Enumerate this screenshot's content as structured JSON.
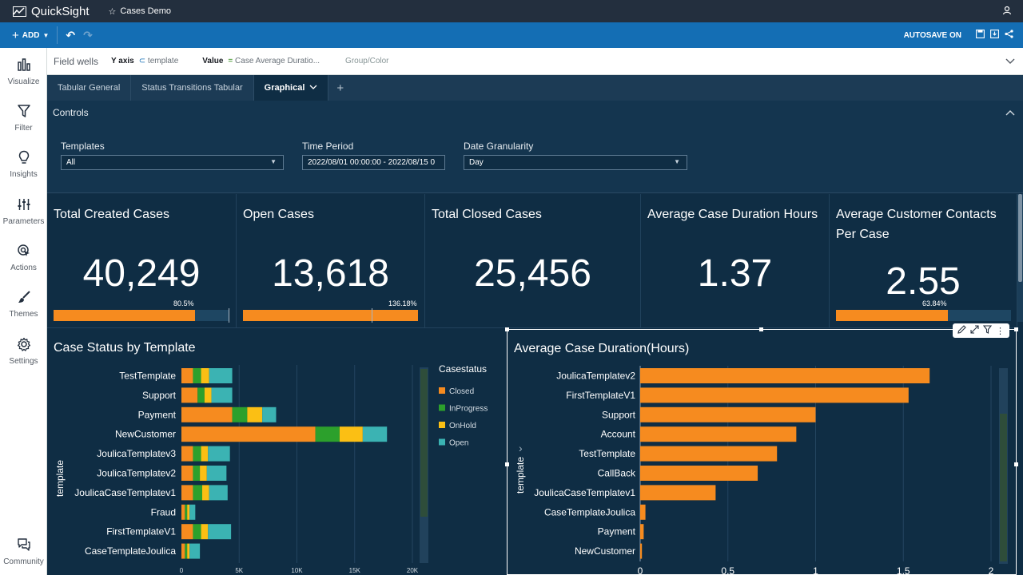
{
  "app": {
    "logo": "QuickSight",
    "analysis_name": "Cases Demo"
  },
  "toolbar": {
    "add_label": "ADD",
    "autosave_label": "AUTOSAVE ON"
  },
  "sidebar": {
    "items": [
      {
        "label": "Visualize",
        "icon": "bar-chart-icon"
      },
      {
        "label": "Filter",
        "icon": "filter-icon"
      },
      {
        "label": "Insights",
        "icon": "lightbulb-icon"
      },
      {
        "label": "Parameters",
        "icon": "sliders-icon"
      },
      {
        "label": "Actions",
        "icon": "cursor-icon"
      },
      {
        "label": "Themes",
        "icon": "brush-icon"
      },
      {
        "label": "Settings",
        "icon": "gear-icon"
      }
    ],
    "community_label": "Community"
  },
  "field_wells": {
    "title": "Field wells",
    "y_axis_label": "Y axis",
    "y_axis_value": "template",
    "value_label": "Value",
    "value_value": "Case Average Duratio...",
    "group_label": "Group/Color"
  },
  "tabs": [
    {
      "label": "Tabular General",
      "active": false
    },
    {
      "label": "Status Transitions Tabular",
      "active": false
    },
    {
      "label": "Graphical",
      "active": true
    }
  ],
  "controls": {
    "title": "Controls",
    "templates": {
      "label": "Templates",
      "value": "All"
    },
    "time_period": {
      "label": "Time Period",
      "value": "2022/08/01 00:00:00 - 2022/08/15 0"
    },
    "date_granularity": {
      "label": "Date Granularity",
      "value": "Day"
    }
  },
  "kpis": [
    {
      "title": "Total Created Cases",
      "value": "40,249",
      "pct": "80.5%",
      "progress": 0.805
    },
    {
      "title": "Open Cases",
      "value": "13,618",
      "pct": "136.18%",
      "progress": 1.0,
      "target": 0.7343
    },
    {
      "title": "Total Closed Cases",
      "value": "25,456"
    },
    {
      "title": "Average Case Duration Hours",
      "value": "1.37"
    },
    {
      "title": "Average Customer Contacts Per Case",
      "value": "2.55",
      "pct": "63.84%",
      "progress": 0.6384
    }
  ],
  "colors": {
    "closed": "#f68b1f",
    "inprogress": "#2ca02c",
    "onhold": "#fbbf14",
    "open": "#3bb3b3",
    "bar": "#f68b1f"
  },
  "chart_data": [
    {
      "type": "bar",
      "orientation": "horizontal-stacked",
      "title": "Case Status by Template",
      "ylabel": "template",
      "legend_title": "Casestatus",
      "categories": [
        "TestTemplate",
        "Support",
        "Payment",
        "NewCustomer",
        "JoulicaTemplatev3",
        "JoulicaTemplatev2",
        "JoulicaCaseTemplatev1",
        "Fraud",
        "FirstTemplateV1",
        "CaseTemplateJoulica"
      ],
      "series": [
        {
          "name": "Closed",
          "values": [
            1000,
            1400,
            4400,
            11600,
            1000,
            1000,
            1000,
            300,
            1000,
            300
          ]
        },
        {
          "name": "InProgress",
          "values": [
            700,
            600,
            1300,
            2100,
            700,
            600,
            800,
            200,
            700,
            200
          ]
        },
        {
          "name": "OnHold",
          "values": [
            700,
            600,
            1300,
            2000,
            600,
            600,
            600,
            200,
            600,
            200
          ]
        },
        {
          "name": "Open",
          "values": [
            2000,
            1800,
            1200,
            2100,
            1900,
            1700,
            1600,
            500,
            2000,
            900
          ]
        }
      ],
      "xticks": [
        "0",
        "5K",
        "10K",
        "15K",
        "20K"
      ],
      "xlim": [
        0,
        20000
      ]
    },
    {
      "type": "bar",
      "orientation": "horizontal",
      "title": "Average Case Duration(Hours)",
      "ylabel": "template",
      "categories": [
        "JoulicaTemplatev2",
        "FirstTemplateV1",
        "Support",
        "Account",
        "TestTemplate",
        "CallBack",
        "JoulicaCaseTemplatev1",
        "CaseTemplateJoulica",
        "Payment",
        "NewCustomer"
      ],
      "values": [
        1.65,
        1.53,
        1.0,
        0.89,
        0.78,
        0.67,
        0.43,
        0.03,
        0.02,
        0.01
      ],
      "xticks": [
        "0",
        "0.5",
        "1",
        "1.5",
        "2"
      ],
      "xlim": [
        0,
        2
      ]
    }
  ]
}
